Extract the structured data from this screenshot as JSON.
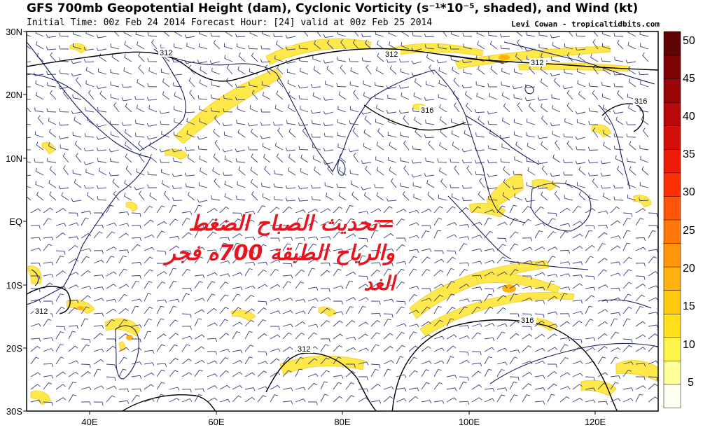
{
  "header": {
    "title": "GFS 700mb Geopotential Height (dam), Cyclonic Vorticity (s⁻¹*10⁻⁵, shaded), and Wind (kt)",
    "subtitle": "Initial Time: 00z Feb 24 2014 Forecast Hour: [24] valid at 00z Feb 25 2014",
    "credit": "Levi Cowan - tropicaltidbits.com"
  },
  "map": {
    "lat_labels": [
      "30N",
      "20N",
      "10N",
      "EQ",
      "10S",
      "20S",
      "30S"
    ],
    "lon_labels": [
      "40E",
      "60E",
      "80E",
      "100E",
      "120E"
    ],
    "contour_labels": [
      "312",
      "312",
      "312",
      "316",
      "316",
      "312",
      "312",
      "316"
    ]
  },
  "colorbar": {
    "labels": [
      "50",
      "45",
      "40",
      "35",
      "30",
      "25",
      "20",
      "15",
      "10",
      "5"
    ],
    "colors": [
      "#fffff0",
      "#ffff9a",
      "#fff44a",
      "#ffe01a",
      "#ffca10",
      "#ffb10e",
      "#ff950c",
      "#ff780a",
      "#ff5508",
      "#ff3005",
      "#ee1b08",
      "#d40e0a",
      "#b8080a",
      "#9a0508",
      "#7e0406",
      "#600304"
    ]
  },
  "overlay": {
    "line1": "=تحديث الصباح الضغط",
    "line2": "والرياح الطبقة 700ه فجر",
    "line3": "الغد"
  },
  "colors": {
    "coast": "#1b1f5e",
    "contour": "#000000",
    "vorticity": "#ffe84a",
    "annotation": "#e8141e"
  }
}
